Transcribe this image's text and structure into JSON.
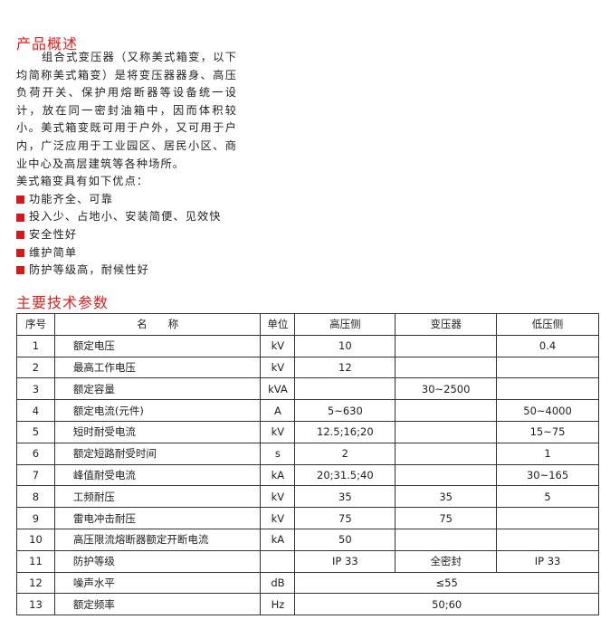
{
  "overview": {
    "title": "产品概述",
    "paragraph": "组合式变压器（又称美式箱变，以下均简称美式箱变）是将变压器器身、高压负荷开关、保护用熔断器等设备统一设计，放在同一密封油箱中，因而体积较小。美式箱变既可用于户外，又可用于户内，广泛应用于工业园区、居民小区、商业中心及高层建筑等各种场所。",
    "advantages_intro": "美式箱变具有如下优点：",
    "bullet_color": "#d7191c",
    "advantages": [
      "功能齐全、可靠",
      "投入少、占地小、安装简便、见效快",
      "安全性好",
      "维护简单",
      "防护等级高，耐候性好"
    ]
  },
  "specs": {
    "title": "主要技术参数",
    "accent_color": "#e0201c",
    "headers": [
      "序号",
      "名　　称",
      "单位",
      "高压侧",
      "变压器",
      "低压侧"
    ],
    "rows": [
      [
        "1",
        "额定电压",
        "kV",
        "10",
        "",
        "0.4"
      ],
      [
        "2",
        "最高工作电压",
        "kV",
        "12",
        "",
        ""
      ],
      [
        "3",
        "额定容量",
        "kVA",
        "",
        "30~2500",
        ""
      ],
      [
        "4",
        "额定电流(元件)",
        "A",
        "5~630",
        "",
        "50~4000"
      ],
      [
        "5",
        "短时耐受电流",
        "kV",
        "12.5;16;20",
        "",
        "15~75"
      ],
      [
        "6",
        "额定短路耐受时间",
        "s",
        "2",
        "",
        "1"
      ],
      [
        "7",
        "峰值耐受电流",
        "kA",
        "20;31.5;40",
        "",
        "30~165"
      ],
      [
        "8",
        "工频耐压",
        "kV",
        "35",
        "35",
        "5"
      ],
      [
        "9",
        "雷电冲击耐压",
        "kV",
        "75",
        "75",
        ""
      ],
      [
        "10",
        "高压限流熔断器额定开断电流",
        "kA",
        "50",
        "",
        ""
      ],
      [
        "11",
        "防护等级",
        "",
        "IP 33",
        "全密封",
        "IP 33"
      ],
      [
        "12",
        "噪声水平",
        "dB",
        "≤55"
      ],
      [
        "13",
        "额定频率",
        "Hz",
        "50;60"
      ]
    ]
  }
}
